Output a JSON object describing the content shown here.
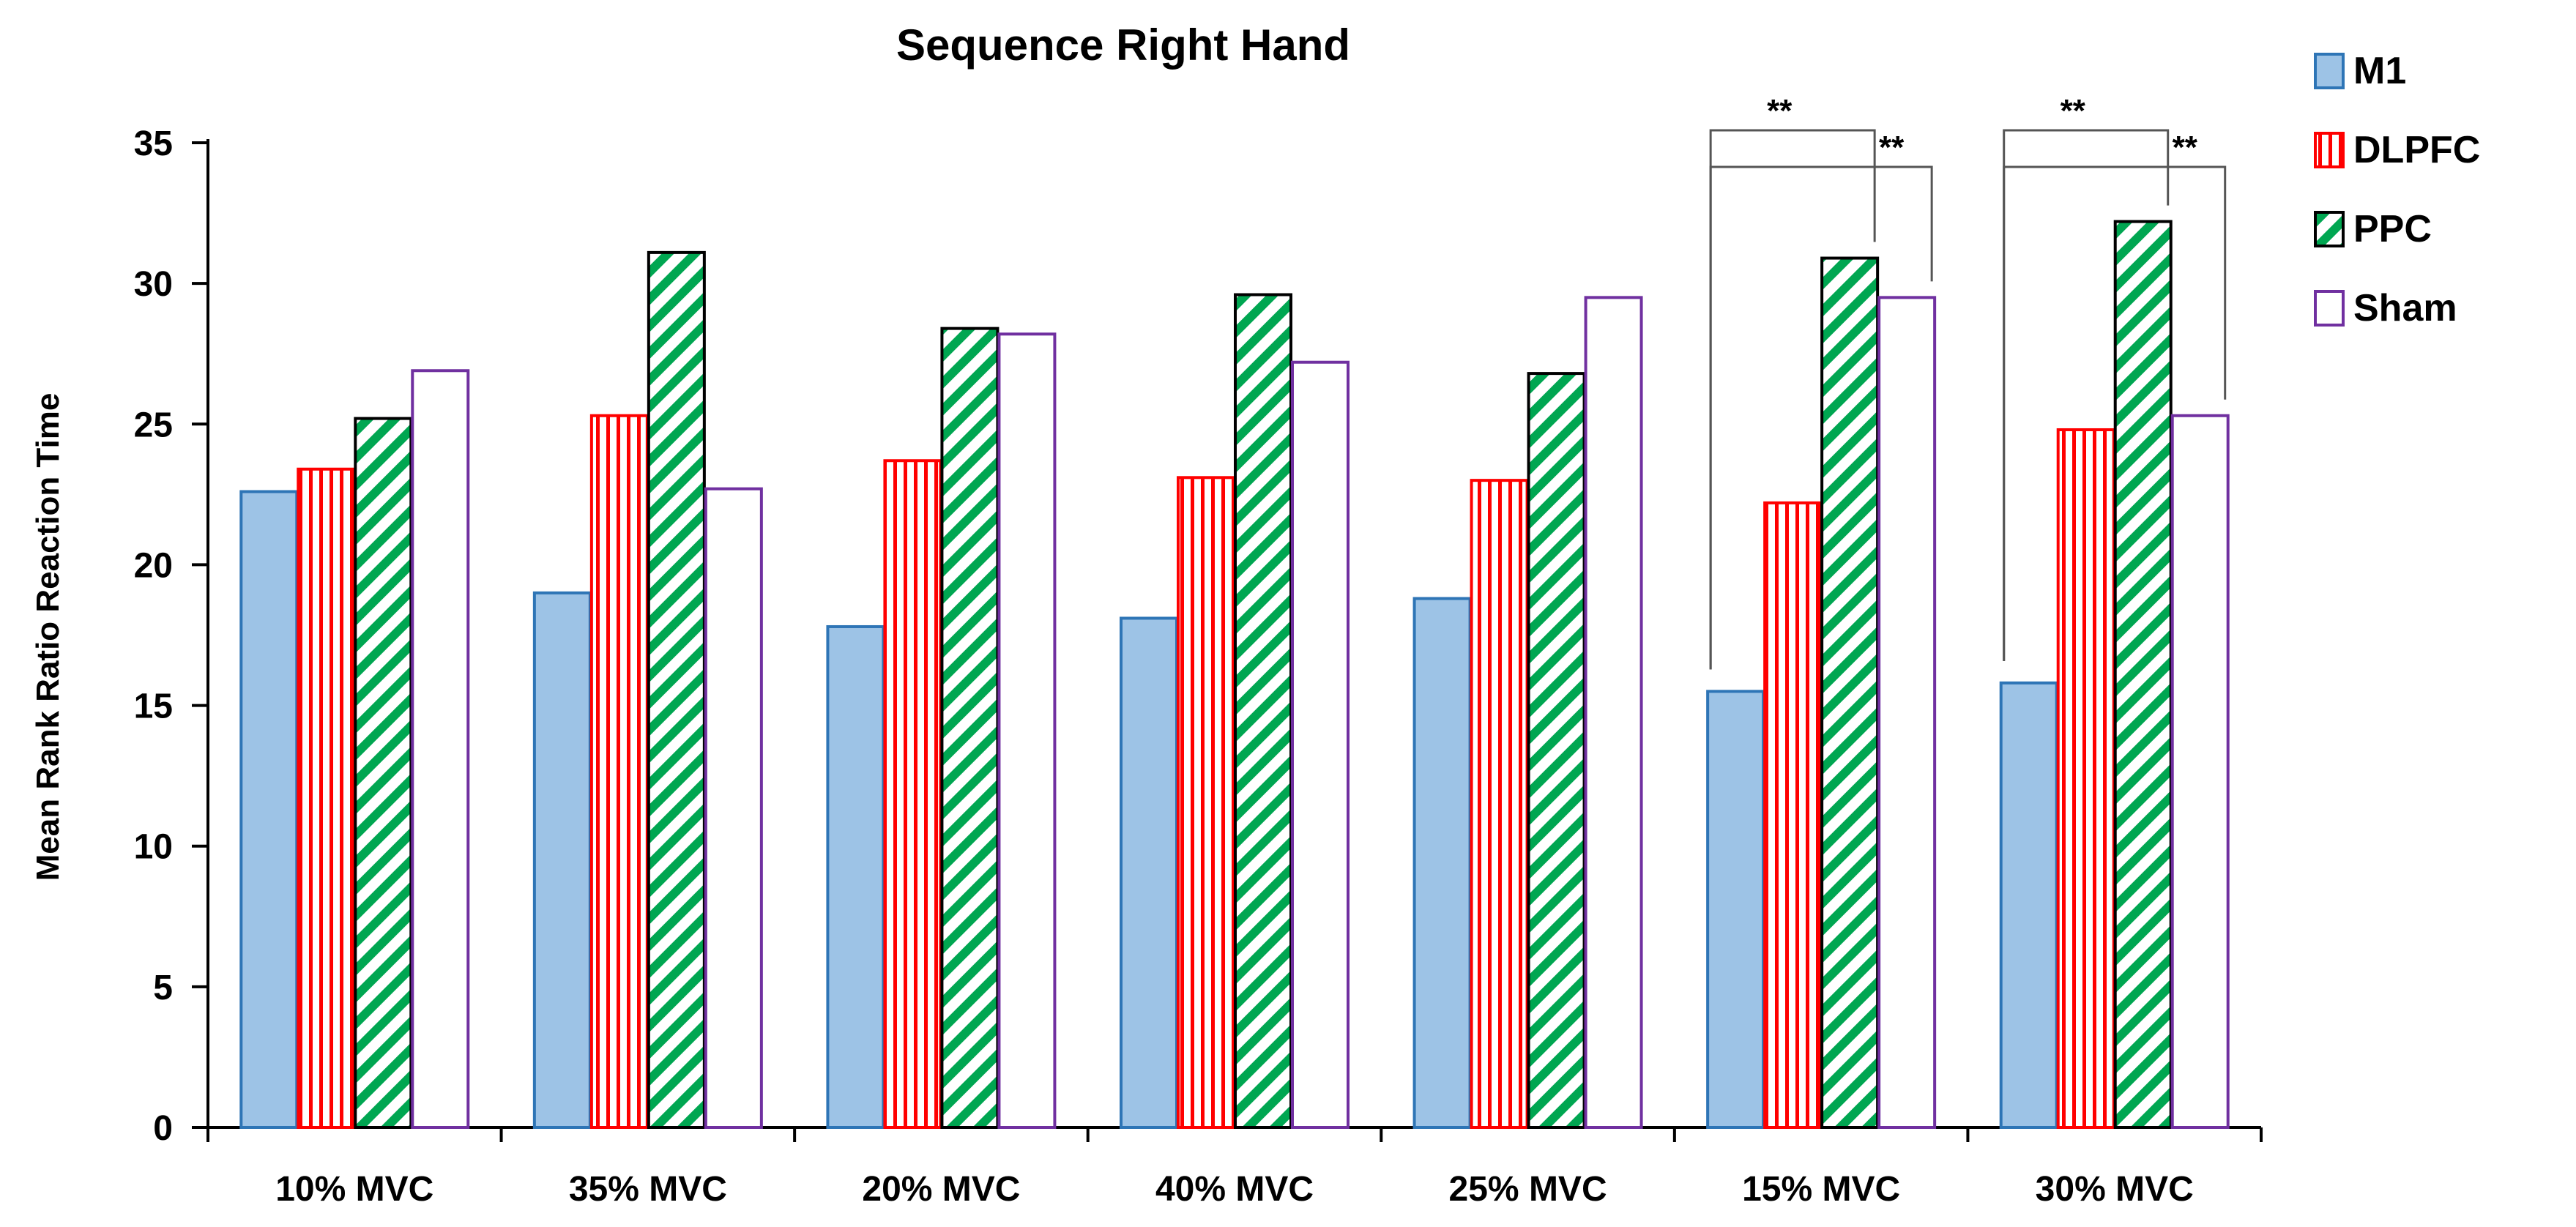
{
  "chart_data": {
    "type": "bar",
    "title": "Sequence Right Hand",
    "xlabel": "",
    "ylabel": "Mean Rank Ratio Reaction Time",
    "ylim": [
      0,
      35
    ],
    "ytick_step": 5,
    "grid": false,
    "legend_position": "top-right",
    "categories": [
      "10% MVC",
      "35% MVC",
      "20% MVC",
      "40% MVC",
      "25% MVC",
      "15% MVC",
      "30% MVC"
    ],
    "series": [
      {
        "name": "M1",
        "values": [
          22.6,
          19.0,
          17.8,
          18.1,
          18.8,
          15.5,
          15.8
        ],
        "fill": "#9dc3e6",
        "stroke": "#2e75b6",
        "pattern": "solid"
      },
      {
        "name": "DLPFC",
        "values": [
          23.4,
          25.3,
          23.7,
          23.1,
          23.0,
          22.2,
          24.8
        ],
        "fill": "#ffffff",
        "stroke": "#ff0000",
        "pattern": "vertical"
      },
      {
        "name": "PPC",
        "values": [
          25.2,
          31.1,
          28.4,
          29.6,
          26.8,
          30.9,
          32.2
        ],
        "fill": "#ffffff",
        "stroke": "#00a651",
        "pattern": "diagonal"
      },
      {
        "name": "Sham",
        "values": [
          26.9,
          22.7,
          28.2,
          27.2,
          29.5,
          29.5,
          25.3
        ],
        "fill": "#ffffff",
        "stroke": "#7030a0",
        "pattern": "solid"
      }
    ],
    "significance": [
      {
        "category": "15% MVC",
        "from": "M1",
        "to": "PPC",
        "label": "**"
      },
      {
        "category": "15% MVC",
        "from": "M1",
        "to": "Sham",
        "label": "**"
      },
      {
        "category": "30% MVC",
        "from": "M1",
        "to": "PPC",
        "label": "**"
      },
      {
        "category": "30% MVC",
        "from": "M1",
        "to": "Sham",
        "label": "**"
      }
    ]
  }
}
